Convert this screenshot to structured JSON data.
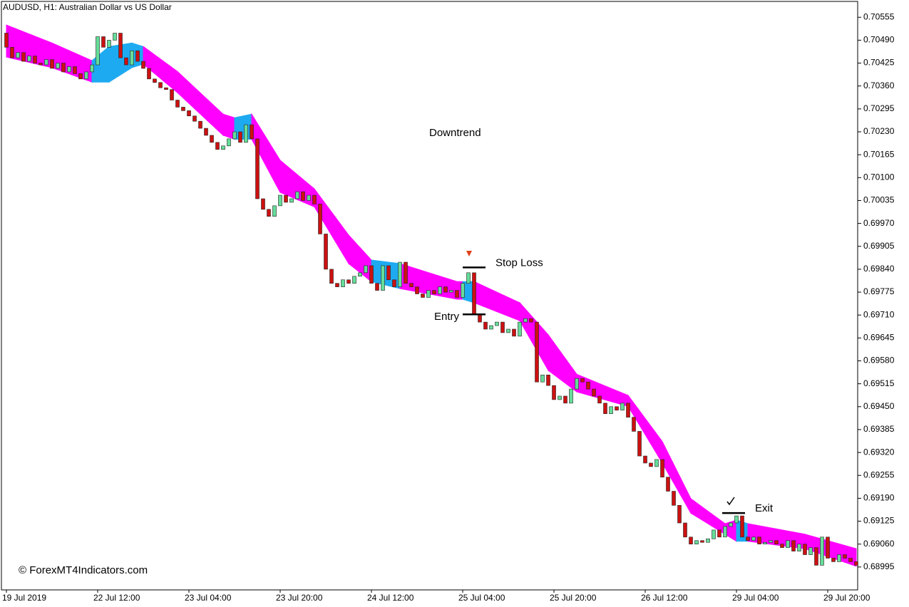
{
  "chart_data": {
    "type": "candlestick",
    "title": "AUDUSD, H1:  Australian Dollar vs US Dollar",
    "watermark": "© ForexMT4Indicators.com",
    "trend_label": "Downtrend",
    "xlim": [
      -0.5,
      149.5
    ],
    "ylim": [
      0.6893,
      0.706
    ],
    "yticks": [
      0.70555,
      {
        "value": 0.7049,
        "label": "0.70490"
      },
      0.70425,
      {
        "value": 0.7036,
        "label": "0.70360"
      },
      0.70295,
      {
        "value": 0.7023,
        "label": "0.70230"
      },
      0.70165,
      {
        "value": 0.701,
        "label": "0.70100"
      },
      0.70035,
      {
        "value": 0.6997,
        "label": "0.69970"
      },
      0.69905,
      {
        "value": 0.6984,
        "label": "0.69840"
      },
      0.69775,
      {
        "value": 0.6971,
        "label": "0.69710"
      },
      0.69645,
      {
        "value": 0.6958,
        "label": "0.69580"
      },
      0.69515,
      {
        "value": 0.6945,
        "label": "0.69450"
      },
      0.69385,
      {
        "value": 0.6932,
        "label": "0.69320"
      },
      0.69255,
      {
        "value": 0.6919,
        "label": "0.69190"
      },
      0.69125,
      {
        "value": 0.6906,
        "label": "0.69060"
      },
      0.68995
    ],
    "xticks": [
      {
        "value": 0,
        "label": "19 Jul 2019"
      },
      {
        "value": 16,
        "label": "22 Jul 12:00"
      },
      {
        "value": 32,
        "label": "23 Jul 04:00"
      },
      {
        "value": 48,
        "label": "23 Jul 20:00"
      },
      {
        "value": 64,
        "label": "24 Jul 12:00"
      },
      {
        "value": 80,
        "label": "25 Jul 04:00"
      },
      {
        "value": 96,
        "label": "25 Jul 20:00"
      },
      {
        "value": 112,
        "label": "26 Jul 12:00"
      },
      {
        "value": 128,
        "label": "29 Jul 04:00"
      },
      {
        "value": 144,
        "label": "29 Jul 20:00"
      }
    ],
    "up_color": "#66dd99",
    "down_color": "#cc1111",
    "open": [
      0.7051,
      0.7047,
      0.7044,
      0.70455,
      0.7043,
      0.70445,
      0.70425,
      0.7042,
      0.70435,
      0.7041,
      0.70425,
      0.704,
      0.70415,
      0.70395,
      0.7038,
      0.704,
      0.7042,
      0.705,
      0.7047,
      0.7049,
      0.7051,
      0.7044,
      0.7042,
      0.7046,
      0.7043,
      0.7041,
      0.7038,
      0.7037,
      0.70355,
      0.7035,
      0.7032,
      0.703,
      0.7029,
      0.70275,
      0.7026,
      0.7024,
      0.7022,
      0.702,
      0.7018,
      0.7019,
      0.7021,
      0.7023,
      0.702,
      0.7025,
      0.7021,
      0.7004,
      0.7001,
      0.6999,
      0.7002,
      0.7005,
      0.7003,
      0.7004,
      0.7006,
      0.70035,
      0.7005,
      0.70025,
      0.6994,
      0.6984,
      0.698,
      0.6979,
      0.6981,
      0.698,
      0.6982,
      0.6983,
      0.6985,
      0.698,
      0.6978,
      0.6985,
      0.6981,
      0.6979,
      0.6986,
      0.698,
      0.6979,
      0.6977,
      0.6976,
      0.6978,
      0.6977,
      0.6979,
      0.69775,
      0.6978,
      0.6976,
      0.698,
      0.6983,
      0.6971,
      0.6969,
      0.6967,
      0.6968,
      0.6969,
      0.6966,
      0.6967,
      0.6965,
      0.6969,
      0.697,
      0.6969,
      0.6952,
      0.6954,
      0.6951,
      0.6947,
      0.6948,
      0.6946,
      0.695,
      0.6953,
      0.6952,
      0.695,
      0.6948,
      0.6946,
      0.6943,
      0.6945,
      0.6944,
      0.6946,
      0.6942,
      0.6938,
      0.6931,
      0.6929,
      0.6928,
      0.693,
      0.6925,
      0.6921,
      0.6917,
      0.6912,
      0.6908,
      0.6906,
      0.6907,
      0.69065,
      0.69075,
      0.691,
      0.6908,
      0.6911,
      0.6912,
      0.6914,
      0.6908,
      0.6907,
      0.6908,
      0.6906,
      0.69065,
      0.6907,
      0.6906,
      0.6905,
      0.6907,
      0.6904,
      0.6906,
      0.6903,
      0.6905,
      0.69,
      0.6908,
      0.6902,
      0.6901,
      0.6903,
      0.6902,
      0.6901
    ],
    "close": [
      0.7047,
      0.7044,
      0.70455,
      0.7043,
      0.70445,
      0.70425,
      0.7042,
      0.70435,
      0.7041,
      0.70425,
      0.704,
      0.70415,
      0.70395,
      0.7038,
      0.704,
      0.7042,
      0.705,
      0.7047,
      0.7049,
      0.7051,
      0.7044,
      0.7042,
      0.7046,
      0.7043,
      0.7041,
      0.7038,
      0.7037,
      0.70355,
      0.7035,
      0.7032,
      0.703,
      0.7029,
      0.70275,
      0.7026,
      0.7024,
      0.7022,
      0.702,
      0.7018,
      0.7019,
      0.7021,
      0.7023,
      0.702,
      0.7025,
      0.7021,
      0.7004,
      0.7001,
      0.6999,
      0.7002,
      0.7005,
      0.7003,
      0.7004,
      0.7006,
      0.70035,
      0.7005,
      0.70025,
      0.6994,
      0.6984,
      0.698,
      0.6979,
      0.6981,
      0.698,
      0.6982,
      0.6983,
      0.6985,
      0.698,
      0.6978,
      0.6985,
      0.6981,
      0.6979,
      0.6986,
      0.698,
      0.6979,
      0.6977,
      0.6976,
      0.6978,
      0.6977,
      0.6979,
      0.69775,
      0.6978,
      0.6976,
      0.698,
      0.6983,
      0.6971,
      0.6969,
      0.6967,
      0.6968,
      0.6969,
      0.6966,
      0.6967,
      0.6965,
      0.6969,
      0.697,
      0.6969,
      0.6952,
      0.6954,
      0.6951,
      0.6947,
      0.6948,
      0.6946,
      0.695,
      0.6953,
      0.6952,
      0.695,
      0.6948,
      0.6946,
      0.6943,
      0.6945,
      0.6944,
      0.6946,
      0.6942,
      0.6938,
      0.6931,
      0.6929,
      0.6928,
      0.693,
      0.6925,
      0.6921,
      0.6917,
      0.6912,
      0.6908,
      0.6906,
      0.6907,
      0.69065,
      0.69075,
      0.691,
      0.6908,
      0.6911,
      0.6912,
      0.6914,
      0.6908,
      0.6907,
      0.6908,
      0.6906,
      0.69065,
      0.6907,
      0.6906,
      0.6905,
      0.6907,
      0.6904,
      0.6906,
      0.6903,
      0.6905,
      0.69,
      0.6908,
      0.6902,
      0.6901,
      0.6903,
      0.6902,
      0.6901,
      0.69
    ],
    "band": {
      "x": [
        0,
        8,
        15,
        18,
        22,
        24,
        30,
        38,
        40,
        43,
        48,
        54,
        60,
        64,
        69,
        79,
        80,
        82,
        90,
        95,
        100,
        109,
        115,
        120,
        126,
        128,
        130,
        140,
        149
      ],
      "upper": [
        0.70533,
        0.70482,
        0.70432,
        0.70472,
        0.70482,
        0.70472,
        0.70401,
        0.7028,
        0.7027,
        0.7028,
        0.70149,
        0.70068,
        0.69937,
        0.69866,
        0.69856,
        0.69805,
        0.69805,
        0.69805,
        0.69745,
        0.69654,
        0.69542,
        0.69482,
        0.69351,
        0.69189,
        0.69118,
        0.69128,
        0.69118,
        0.69088,
        0.69047
      ],
      "lower": [
        0.70442,
        0.70412,
        0.70371,
        0.70371,
        0.70412,
        0.70422,
        0.70341,
        0.7022,
        0.70209,
        0.70209,
        0.70058,
        0.70017,
        0.69856,
        0.69805,
        0.69785,
        0.69755,
        0.69755,
        0.69745,
        0.69694,
        0.69553,
        0.69492,
        0.69451,
        0.6929,
        0.69148,
        0.69088,
        0.69068,
        0.69068,
        0.69047,
        0.68997
      ],
      "colors": [
        "#ff00ff",
        "#ff00ff",
        "#1eaaf1",
        "#1eaaf1",
        "#1eaaf1",
        "#ff00ff",
        "#ff00ff",
        "#ff00ff",
        "#1eaaf1",
        "#ff00ff",
        "#ff00ff",
        "#ff00ff",
        "#ff00ff",
        "#1eaaf1",
        "#ff00ff",
        "#ff00ff",
        "#1eaaf1",
        "#ff00ff",
        "#ff00ff",
        "#ff00ff",
        "#ff00ff",
        "#ff00ff",
        "#ff00ff",
        "#ff00ff",
        "#ff00ff",
        "#1eaaf1",
        "#ff00ff",
        "#ff00ff",
        "#ff00ff"
      ]
    },
    "levels": [
      {
        "text": "Stop Loss",
        "value": 0.69845,
        "x": [
          80,
          84
        ]
      },
      {
        "text": "Entry",
        "value": 0.69712,
        "x": [
          80,
          84
        ]
      },
      {
        "text": "Exit",
        "value": 0.69148,
        "x": [
          125.5,
          129.5
        ]
      }
    ]
  }
}
